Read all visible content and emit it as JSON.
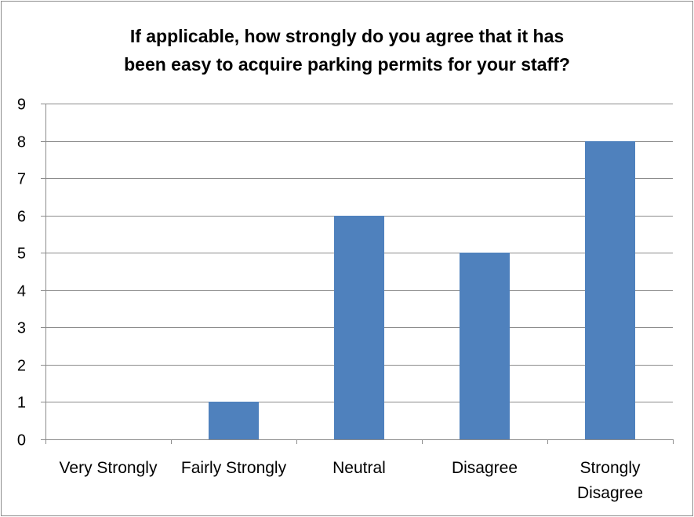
{
  "chart_data": {
    "type": "bar",
    "title_lines": [
      "If applicable, how strongly do you agree that it has",
      "been easy to acquire parking permits for your staff?"
    ],
    "categories": [
      [
        "Very Strongly"
      ],
      [
        "Fairly Strongly"
      ],
      [
        "Neutral"
      ],
      [
        "Disagree"
      ],
      [
        "Strongly",
        "Disagree"
      ]
    ],
    "values": [
      0,
      1,
      6,
      5,
      8
    ],
    "ylim": [
      0,
      9
    ],
    "yticks": [
      0,
      1,
      2,
      3,
      4,
      5,
      6,
      7,
      8,
      9
    ],
    "grid": true,
    "bar_color": "#4f81bd",
    "legend": "none"
  }
}
